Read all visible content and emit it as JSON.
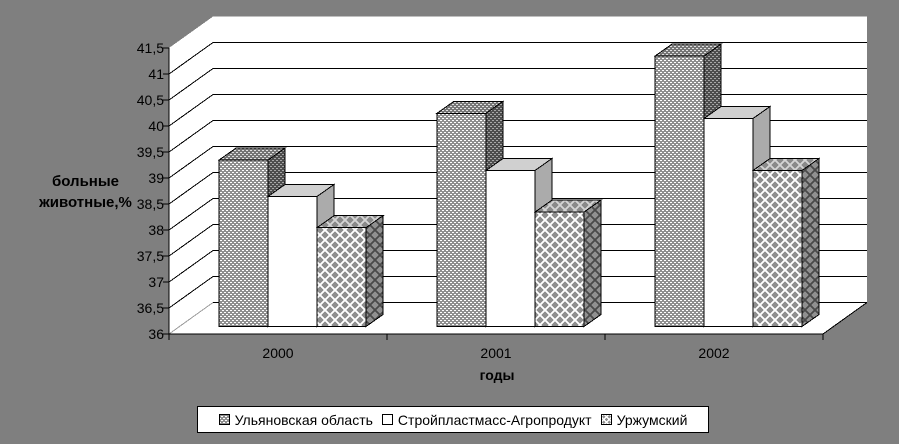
{
  "chart_data": {
    "type": "bar",
    "variant": "3d-clustered-column",
    "categories": [
      "2000",
      "2001",
      "2002"
    ],
    "series": [
      {
        "name": "Ульяновская область",
        "pattern": "checker",
        "values": [
          39.2,
          40.1,
          41.2
        ]
      },
      {
        "name": "Стройпластмасс-Агропродукт",
        "pattern": "white",
        "values": [
          38.5,
          39.0,
          40.0
        ]
      },
      {
        "name": "Уржумский",
        "pattern": "diamond",
        "values": [
          37.9,
          38.2,
          39.0
        ]
      }
    ],
    "xlabel": "годы",
    "ylabel_lines": [
      "больные",
      "животные,%"
    ],
    "ylim": [
      36,
      41.5
    ],
    "ytick_step": 0.5,
    "ytick_labels": [
      "36",
      "36,5",
      "37",
      "37,5",
      "38",
      "38,5",
      "39",
      "39,5",
      "40",
      "40,5",
      "41",
      "41,5"
    ],
    "decimal_separator": ",",
    "grid": true,
    "legend_position": "bottom"
  },
  "colors": {
    "canvas_bg": "#7f7f7f",
    "wall_bg": "#ffffff",
    "gridline": "#000000",
    "axis": "#000000",
    "floor_left_edge": "#9e9e9e",
    "text": "#000000",
    "legend_bg": "#ffffff",
    "legend_border": "#000000",
    "checker": {
      "front_bg": "#8f8f8f",
      "front_dot": "#ffffff",
      "top_bg": "#757575",
      "top_dot": "#e0e0e0",
      "side_bg": "#4d4d4d",
      "side_dot": "#a6a6a6"
    },
    "white": {
      "front": "#ffffff",
      "top": "#d0d0d0",
      "side": "#ababab"
    },
    "diamond": {
      "front_bg": "#ffffff",
      "front_dot": "#8f8f8f",
      "top_bg": "#d4d4d4",
      "top_dot": "#8a8a8a",
      "side_bg": "#4a4a4a",
      "side_dot": "#909090"
    }
  }
}
